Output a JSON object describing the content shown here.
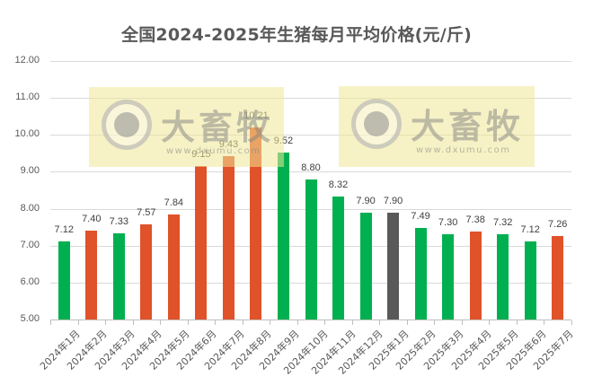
{
  "chart_data": {
    "type": "bar",
    "title": "全国2024-2025年生猪每月平均价格(元/斤)",
    "xlabel": "",
    "ylabel": "",
    "ylim": [
      5.0,
      12.0
    ],
    "yticks": [
      "12.00",
      "11.00",
      "10.00",
      "9.00",
      "8.00",
      "7.00",
      "6.00",
      "5.00"
    ],
    "grid": true,
    "legend": null,
    "categories": [
      "2024年1月",
      "2024年2月",
      "2024年3月",
      "2024年4月",
      "2024年5月",
      "2024年6月",
      "2024年7月",
      "2024年8月",
      "2024年9月",
      "2024年10月",
      "2024年11月",
      "2024年12月",
      "2025年1月",
      "2025年2月",
      "2025年3月",
      "2025年4月",
      "2025年5月",
      "2025年6月",
      "2025年7月"
    ],
    "values": [
      7.12,
      7.4,
      7.33,
      7.57,
      7.84,
      9.15,
      9.43,
      10.21,
      9.52,
      8.8,
      8.32,
      7.9,
      7.9,
      7.49,
      7.3,
      7.38,
      7.32,
      7.12,
      7.26
    ],
    "value_labels": [
      "7.12",
      "7.40",
      "7.33",
      "7.57",
      "7.84",
      "9.15",
      "9.43",
      "10.21",
      "9.52",
      "8.80",
      "8.32",
      "7.90",
      "7.90",
      "7.49",
      "7.30",
      "7.38",
      "7.32",
      "7.12",
      "7.26"
    ],
    "bar_colors": [
      "#00b050",
      "#e0522a",
      "#00b050",
      "#e0522a",
      "#e0522a",
      "#e0522a",
      "#e0522a",
      "#e0522a",
      "#00b050",
      "#00b050",
      "#00b050",
      "#00b050",
      "#595959",
      "#00b050",
      "#00b050",
      "#e0522a",
      "#00b050",
      "#00b050",
      "#e0522a"
    ],
    "color_meaning": {
      "#00b050": "decrease vs previous month",
      "#e0522a": "increase vs previous month",
      "#595959": "flat vs previous month"
    }
  },
  "watermark": {
    "brand": "大畜牧",
    "url": "www.dxumu.com"
  }
}
